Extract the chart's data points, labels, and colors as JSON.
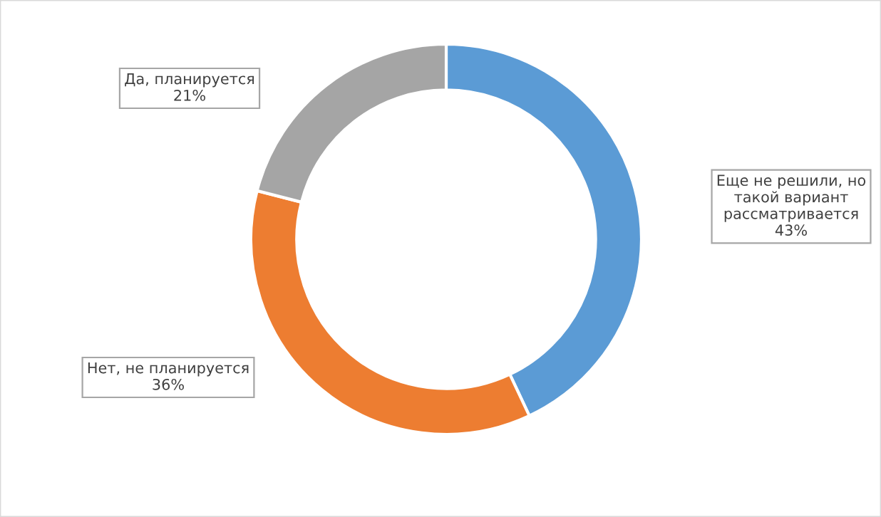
{
  "chart_data": {
    "type": "donut",
    "categories": [
      "Еще не решили, но такой вариант рассматривается",
      "Нет, не планируется",
      "Да, планируется"
    ],
    "values": [
      43,
      36,
      21
    ],
    "value_labels": [
      "43%",
      "36%",
      "21%"
    ],
    "colors": [
      "#5b9bd5",
      "#ed7d31",
      "#a5a5a5"
    ],
    "legend": false
  }
}
